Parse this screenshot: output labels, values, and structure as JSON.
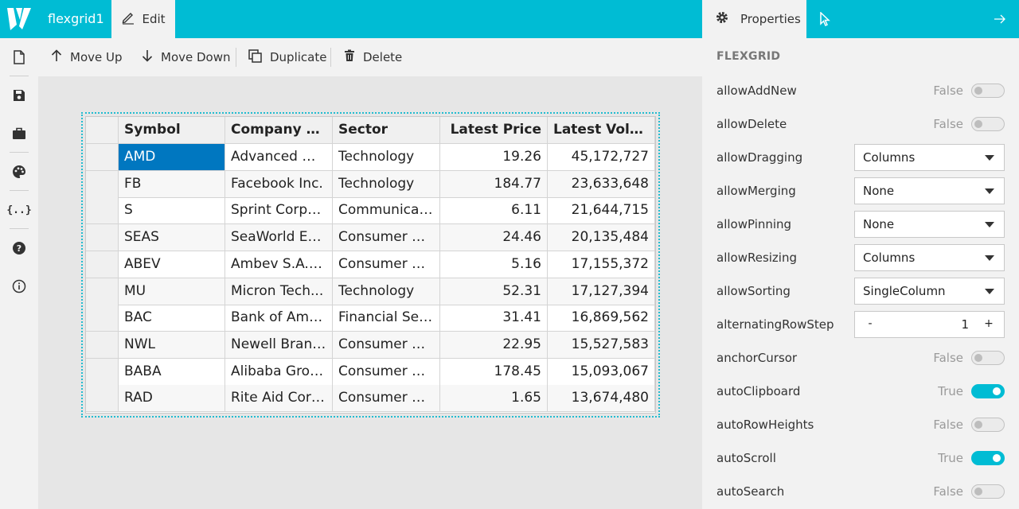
{
  "app": {
    "title": "flexgrid1",
    "edit_tab": "Edit",
    "properties_tab": "Properties",
    "accent_color": "#00bcd4",
    "selection_color": "#0077c0"
  },
  "sidebar": {
    "items": [
      {
        "icon": "new-file-icon"
      },
      {
        "icon": "save-icon"
      },
      {
        "icon": "briefcase-icon"
      },
      {
        "icon": "palette-icon"
      },
      {
        "label": "{..}"
      },
      {
        "icon": "help-icon"
      },
      {
        "icon": "info-icon"
      }
    ]
  },
  "toolbar": {
    "move_up": "Move Up",
    "move_down": "Move Down",
    "duplicate": "Duplicate",
    "delete": "Delete"
  },
  "grid": {
    "columns": [
      "Symbol",
      "Company N...",
      "Sector",
      "Latest Price",
      "Latest Volu..."
    ],
    "rows": [
      [
        "AMD",
        "Advanced Mi...",
        "Technology",
        "19.26",
        "45,172,727"
      ],
      [
        "FB",
        "Facebook Inc.",
        "Technology",
        "184.77",
        "23,633,648"
      ],
      [
        "S",
        "Sprint Corpo...",
        "Communicati...",
        "6.11",
        "21,644,715"
      ],
      [
        "SEAS",
        "SeaWorld Ent...",
        "Consumer Cy...",
        "24.46",
        "20,135,484"
      ],
      [
        "ABEV",
        "Ambev S.A. A...",
        "Consumer D...",
        "5.16",
        "17,155,372"
      ],
      [
        "MU",
        "Micron Tech...",
        "Technology",
        "52.31",
        "17,127,394"
      ],
      [
        "BAC",
        "Bank of Ame...",
        "Financial Ser...",
        "31.41",
        "16,869,562"
      ],
      [
        "NWL",
        "Newell Brand...",
        "Consumer D...",
        "22.95",
        "15,527,583"
      ],
      [
        "BABA",
        "Alibaba Grou...",
        "Consumer Cy...",
        "178.45",
        "15,093,067"
      ],
      [
        "RAD",
        "Rite Aid Corp...",
        "Consumer D...",
        "1.65",
        "13,674,480"
      ]
    ]
  },
  "properties": {
    "section": "FLEXGRID",
    "items": [
      {
        "name": "allowAddNew",
        "type": "bool",
        "text": "False",
        "on": false
      },
      {
        "name": "allowDelete",
        "type": "bool",
        "text": "False",
        "on": false
      },
      {
        "name": "allowDragging",
        "type": "select",
        "value": "Columns"
      },
      {
        "name": "allowMerging",
        "type": "select",
        "value": "None"
      },
      {
        "name": "allowPinning",
        "type": "select",
        "value": "None"
      },
      {
        "name": "allowResizing",
        "type": "select",
        "value": "Columns"
      },
      {
        "name": "allowSorting",
        "type": "select",
        "value": "SingleColumn"
      },
      {
        "name": "alternatingRowStep",
        "type": "number",
        "value": "1",
        "minus": "-",
        "plus": "+"
      },
      {
        "name": "anchorCursor",
        "type": "bool",
        "text": "False",
        "on": false
      },
      {
        "name": "autoClipboard",
        "type": "bool",
        "text": "True",
        "on": true
      },
      {
        "name": "autoRowHeights",
        "type": "bool",
        "text": "False",
        "on": false
      },
      {
        "name": "autoScroll",
        "type": "bool",
        "text": "True",
        "on": true
      },
      {
        "name": "autoSearch",
        "type": "bool",
        "text": "False",
        "on": false
      }
    ]
  }
}
